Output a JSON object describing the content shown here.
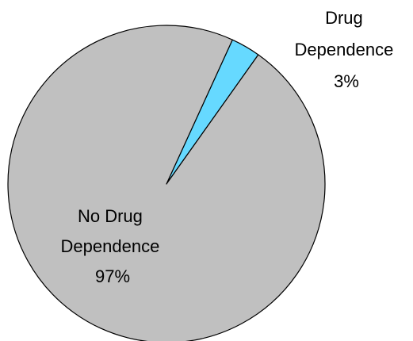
{
  "chart_data": {
    "type": "pie",
    "slices": [
      {
        "label_lines": [
          "No Drug",
          "Dependence"
        ],
        "value": 97,
        "value_text": "97%",
        "color": "#c0c0c0"
      },
      {
        "label_lines": [
          "Drug",
          "Dependence"
        ],
        "value": 3,
        "value_text": "3%",
        "color": "#66d9ff"
      }
    ],
    "legend": "none",
    "slice_outline_color": "#000000"
  }
}
